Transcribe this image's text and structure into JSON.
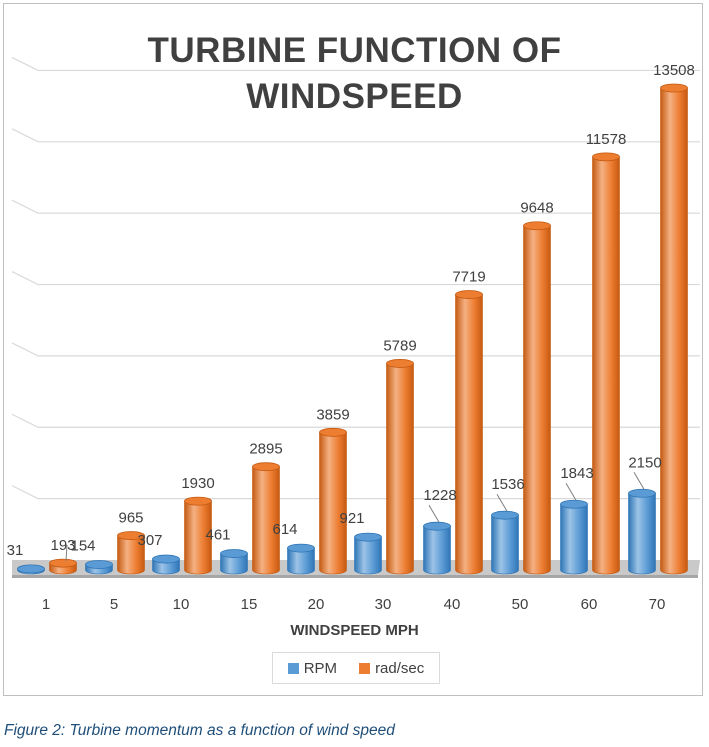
{
  "caption": "Figure 2: Turbine momentum as a function of wind speed",
  "colors": {
    "rpm": "#5b9bd5",
    "rad": "#ed7d31",
    "grid": "#d9d9d9",
    "floor": "#c9c9c9",
    "text": "#404040",
    "caption": "#1f4e79"
  },
  "chart_data": {
    "type": "bar",
    "style": "3d-cylinder",
    "title": "TURBINE FUNCTION OF WINDSPEED",
    "title_lines": [
      "TURBINE FUNCTION OF",
      "WINDSPEED"
    ],
    "xlabel": "WINDSPEED MPH",
    "ylabel": "",
    "categories": [
      "1",
      "5",
      "10",
      "15",
      "20",
      "30",
      "40",
      "50",
      "60",
      "70"
    ],
    "series": [
      {
        "name": "RPM",
        "values": [
          31,
          154,
          307,
          461,
          614,
          921,
          1228,
          1536,
          1843,
          2150
        ]
      },
      {
        "name": "rad/sec",
        "values": [
          193,
          965,
          1930,
          2895,
          3859,
          5789,
          7719,
          9648,
          11578,
          13508
        ]
      }
    ],
    "ylim": [
      0,
      14000
    ],
    "grid": true,
    "legend_position": "bottom"
  }
}
